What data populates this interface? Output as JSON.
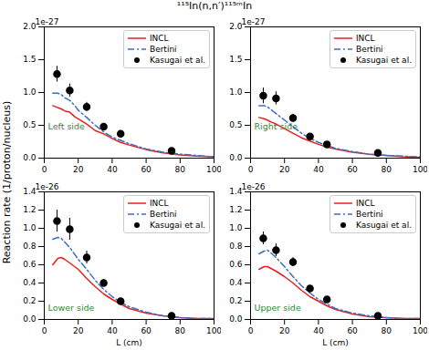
{
  "title": "¹¹⁵In(n,n′)¹¹⁵ᵐIn",
  "ylabel": "Reaction rate (1/proton/nucleus)",
  "chart_data": [
    {
      "type": "line",
      "annotation": "Left side",
      "offset_text": "1e-27",
      "xlim": [
        0,
        100
      ],
      "xticks": [
        0,
        20,
        40,
        60,
        80,
        100
      ],
      "ylim": [
        0,
        2.0
      ],
      "yticks": [
        {
          "value": 0,
          "label": "0.0"
        },
        {
          "value": 0.5,
          "label": "0.5"
        },
        {
          "value": 1.0,
          "label": "1.0"
        },
        {
          "value": 1.5,
          "label": "1.5"
        },
        {
          "value": 2.0,
          "label": "2.0"
        }
      ],
      "legend": "upper right",
      "series": [
        {
          "name": "INCL",
          "type": "line",
          "color": "#e8201a",
          "line_style": "solid",
          "x": [
            5,
            7,
            10,
            12,
            15,
            18,
            20,
            25,
            30,
            35,
            40,
            45,
            50,
            60,
            70,
            80,
            90,
            100
          ],
          "values": [
            0.8,
            0.78,
            0.75,
            0.72,
            0.7,
            0.63,
            0.6,
            0.52,
            0.42,
            0.37,
            0.3,
            0.24,
            0.2,
            0.13,
            0.08,
            0.05,
            0.03,
            0.02
          ]
        },
        {
          "name": "Bertini",
          "type": "line",
          "color": "#3a6fc4",
          "line_style": "dashdot",
          "x": [
            5,
            8,
            10,
            12,
            15,
            18,
            20,
            25,
            30,
            35,
            40,
            45,
            50,
            60,
            70,
            80,
            90,
            100
          ],
          "values": [
            0.99,
            0.99,
            0.97,
            0.92,
            0.88,
            0.8,
            0.73,
            0.62,
            0.5,
            0.4,
            0.32,
            0.27,
            0.22,
            0.14,
            0.09,
            0.06,
            0.04,
            0.02
          ]
        },
        {
          "name": "Kasugai et al.",
          "type": "scatter",
          "color": "#000000",
          "marker": "circle",
          "x": [
            7.5,
            15,
            25,
            35,
            45,
            75
          ],
          "values": [
            1.28,
            1.03,
            0.78,
            0.48,
            0.37,
            0.11
          ],
          "errors": [
            0.12,
            0.1,
            0.07,
            0.05,
            0.04,
            0.02
          ]
        }
      ]
    },
    {
      "type": "line",
      "annotation": "Right side",
      "offset_text": "1e-27",
      "xlim": [
        0,
        100
      ],
      "xticks": [
        0,
        20,
        40,
        60,
        80,
        100
      ],
      "ylim": [
        0,
        2.0
      ],
      "yticks": [
        {
          "value": 0,
          "label": "0.0"
        },
        {
          "value": 0.5,
          "label": "0.5"
        },
        {
          "value": 1.0,
          "label": "1.0"
        },
        {
          "value": 1.5,
          "label": "1.5"
        },
        {
          "value": 2.0,
          "label": "2.0"
        }
      ],
      "legend": "upper right",
      "series": [
        {
          "name": "INCL",
          "type": "line",
          "color": "#e8201a",
          "line_style": "solid",
          "x": [
            5,
            8,
            10,
            12,
            15,
            20,
            25,
            30,
            35,
            40,
            45,
            50,
            60,
            70,
            80,
            90,
            100
          ],
          "values": [
            0.62,
            0.6,
            0.58,
            0.55,
            0.52,
            0.45,
            0.38,
            0.31,
            0.26,
            0.21,
            0.17,
            0.14,
            0.09,
            0.06,
            0.04,
            0.02,
            0.01
          ]
        },
        {
          "name": "Bertini",
          "type": "line",
          "color": "#3a6fc4",
          "line_style": "dashdot",
          "x": [
            5,
            8,
            10,
            12,
            15,
            20,
            25,
            30,
            35,
            40,
            45,
            50,
            60,
            70,
            80,
            90,
            100
          ],
          "values": [
            0.8,
            0.8,
            0.78,
            0.74,
            0.68,
            0.58,
            0.48,
            0.38,
            0.3,
            0.24,
            0.19,
            0.15,
            0.1,
            0.06,
            0.04,
            0.03,
            0.02
          ]
        },
        {
          "name": "Kasugai et al.",
          "type": "scatter",
          "color": "#000000",
          "marker": "circle",
          "x": [
            7.5,
            15,
            25,
            35,
            45,
            75
          ],
          "values": [
            0.95,
            0.91,
            0.61,
            0.33,
            0.21,
            0.08
          ],
          "errors": [
            0.12,
            0.1,
            0.06,
            0.04,
            0.03,
            0.02
          ]
        }
      ]
    },
    {
      "type": "line",
      "annotation": "Lower side",
      "offset_text": "1e-26",
      "xlabel": "L (cm)",
      "xlim": [
        0,
        100
      ],
      "xticks": [
        0,
        20,
        40,
        60,
        80,
        100
      ],
      "ylim": [
        0,
        1.4
      ],
      "yticks": [
        {
          "value": 0,
          "label": "0.0"
        },
        {
          "value": 0.2,
          "label": "0.2"
        },
        {
          "value": 0.4,
          "label": "0.4"
        },
        {
          "value": 0.6,
          "label": "0.6"
        },
        {
          "value": 0.8,
          "label": "0.8"
        },
        {
          "value": 1.0,
          "label": "1.0"
        },
        {
          "value": 1.2,
          "label": "1.2"
        },
        {
          "value": 1.4,
          "label": "1.4"
        }
      ],
      "legend": "upper right",
      "series": [
        {
          "name": "INCL",
          "type": "line",
          "color": "#e8201a",
          "line_style": "solid",
          "x": [
            5,
            8,
            10,
            12,
            15,
            20,
            25,
            30,
            35,
            40,
            45,
            50,
            60,
            70,
            80,
            90,
            100
          ],
          "values": [
            0.6,
            0.67,
            0.68,
            0.66,
            0.62,
            0.55,
            0.45,
            0.36,
            0.28,
            0.22,
            0.17,
            0.12,
            0.07,
            0.04,
            0.02,
            0.01,
            0.01
          ]
        },
        {
          "name": "Bertini",
          "type": "line",
          "color": "#3a6fc4",
          "line_style": "dashdot",
          "x": [
            5,
            8,
            10,
            12,
            15,
            20,
            25,
            30,
            35,
            40,
            45,
            50,
            60,
            70,
            80,
            90,
            100
          ],
          "values": [
            0.88,
            0.9,
            0.89,
            0.85,
            0.79,
            0.66,
            0.55,
            0.43,
            0.33,
            0.25,
            0.19,
            0.14,
            0.08,
            0.04,
            0.02,
            0.01,
            0.01
          ]
        },
        {
          "name": "Kasugai et al.",
          "type": "scatter",
          "color": "#000000",
          "marker": "circle",
          "x": [
            7.5,
            15,
            25,
            35,
            45,
            75
          ],
          "values": [
            1.08,
            0.99,
            0.68,
            0.4,
            0.2,
            0.04
          ],
          "errors": [
            0.12,
            0.12,
            0.07,
            0.04,
            0.02,
            0.01
          ]
        }
      ]
    },
    {
      "type": "line",
      "annotation": "Upper side",
      "offset_text": "1e-26",
      "xlabel": "L (cm)",
      "xlim": [
        0,
        100
      ],
      "xticks": [
        0,
        20,
        40,
        60,
        80,
        100
      ],
      "ylim": [
        0,
        1.4
      ],
      "yticks": [
        {
          "value": 0,
          "label": "0.0"
        },
        {
          "value": 0.2,
          "label": "0.2"
        },
        {
          "value": 0.4,
          "label": "0.4"
        },
        {
          "value": 0.6,
          "label": "0.6"
        },
        {
          "value": 0.8,
          "label": "0.8"
        },
        {
          "value": 1.0,
          "label": "1.0"
        },
        {
          "value": 1.2,
          "label": "1.2"
        },
        {
          "value": 1.4,
          "label": "1.4"
        }
      ],
      "legend": "upper right",
      "series": [
        {
          "name": "INCL",
          "type": "line",
          "color": "#e8201a",
          "line_style": "solid",
          "x": [
            5,
            8,
            10,
            12,
            15,
            20,
            25,
            30,
            35,
            40,
            45,
            50,
            60,
            70,
            80,
            90,
            100
          ],
          "values": [
            0.55,
            0.58,
            0.58,
            0.56,
            0.53,
            0.47,
            0.4,
            0.32,
            0.25,
            0.2,
            0.15,
            0.11,
            0.06,
            0.03,
            0.02,
            0.01,
            0.01
          ]
        },
        {
          "name": "Bertini",
          "type": "line",
          "color": "#3a6fc4",
          "line_style": "dashdot",
          "x": [
            5,
            8,
            10,
            12,
            15,
            20,
            25,
            30,
            35,
            40,
            45,
            50,
            60,
            70,
            80,
            90,
            100
          ],
          "values": [
            0.72,
            0.75,
            0.76,
            0.73,
            0.68,
            0.58,
            0.47,
            0.37,
            0.29,
            0.22,
            0.17,
            0.12,
            0.07,
            0.04,
            0.02,
            0.01,
            0.01
          ]
        },
        {
          "name": "Kasugai et al.",
          "type": "scatter",
          "color": "#000000",
          "marker": "circle",
          "x": [
            7.5,
            15,
            25,
            35,
            45,
            75
          ],
          "values": [
            0.89,
            0.76,
            0.63,
            0.34,
            0.22,
            0.04
          ],
          "errors": [
            0.07,
            0.07,
            0.05,
            0.03,
            0.02,
            0.01
          ]
        }
      ]
    }
  ]
}
